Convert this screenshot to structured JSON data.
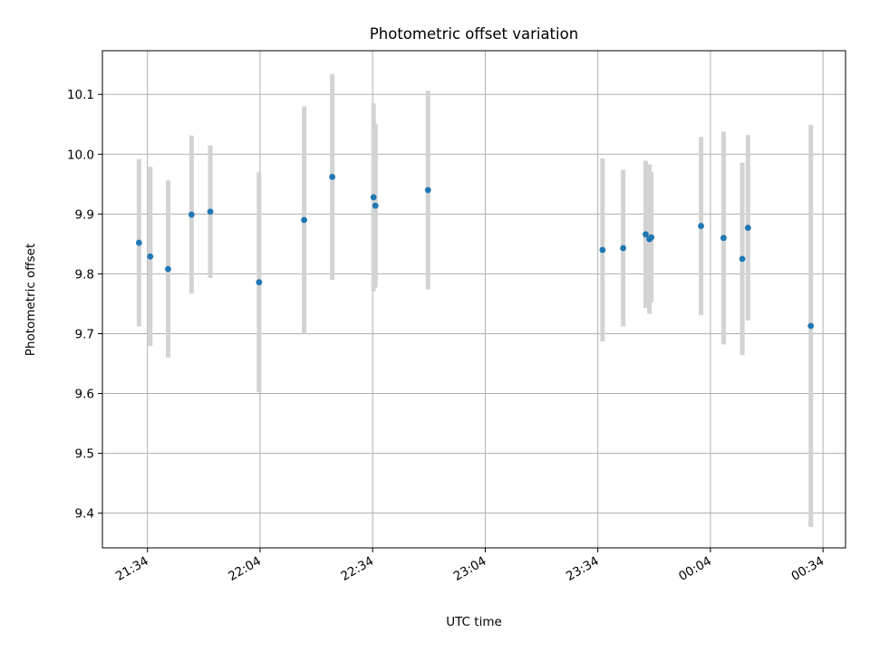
{
  "chart_data": {
    "type": "scatter",
    "title": "Photometric offset variation",
    "xlabel": "UTC time",
    "ylabel": "Photometric offset",
    "x_unit": "UTC time (HH:MM), values after 24:00 continue past midnight",
    "xlim": [
      "21:22",
      "00:40"
    ],
    "ylim": [
      9.342,
      10.173
    ],
    "x_ticks": [
      "21:34",
      "22:04",
      "22:34",
      "23:04",
      "23:34",
      "00:04",
      "00:34"
    ],
    "y_ticks": [
      "9.4",
      "9.5",
      "9.6",
      "9.7",
      "9.8",
      "9.9",
      "10.0",
      "10.1"
    ],
    "grid": true,
    "marker_color": "#1f77b4",
    "errorbar_color": "#d3d3d3",
    "points": [
      {
        "t": "21:31:45",
        "y": 9.852,
        "err": 0.14
      },
      {
        "t": "21:34:45",
        "y": 9.829,
        "err": 0.15
      },
      {
        "t": "21:39:30",
        "y": 9.808,
        "err": 0.148
      },
      {
        "t": "21:45:45",
        "y": 9.899,
        "err": 0.132
      },
      {
        "t": "21:50:45",
        "y": 9.904,
        "err": 0.111
      },
      {
        "t": "22:03:45",
        "y": 9.786,
        "err": 0.184
      },
      {
        "t": "22:15:45",
        "y": 9.89,
        "err": 0.19
      },
      {
        "t": "22:23:15",
        "y": 9.962,
        "err": 0.172
      },
      {
        "t": "22:34:15",
        "y": 9.928,
        "err": 0.157
      },
      {
        "t": "22:34:45",
        "y": 9.914,
        "err": 0.137
      },
      {
        "t": "22:48:45",
        "y": 9.94,
        "err": 0.166
      },
      {
        "t": "23:35:15",
        "y": 9.84,
        "err": 0.153
      },
      {
        "t": "23:40:45",
        "y": 9.843,
        "err": 0.131
      },
      {
        "t": "23:46:45",
        "y": 9.866,
        "err": 0.123
      },
      {
        "t": "23:47:45",
        "y": 9.858,
        "err": 0.125
      },
      {
        "t": "23:48:15",
        "y": 9.861,
        "err": 0.109
      },
      {
        "t": "00:01:30",
        "y": 9.88,
        "err": 0.149
      },
      {
        "t": "00:07:30",
        "y": 9.86,
        "err": 0.178
      },
      {
        "t": "00:12:30",
        "y": 9.825,
        "err": 0.161
      },
      {
        "t": "00:14:00",
        "y": 9.877,
        "err": 0.155
      },
      {
        "t": "00:30:45",
        "y": 9.713,
        "err": 0.336
      }
    ]
  }
}
